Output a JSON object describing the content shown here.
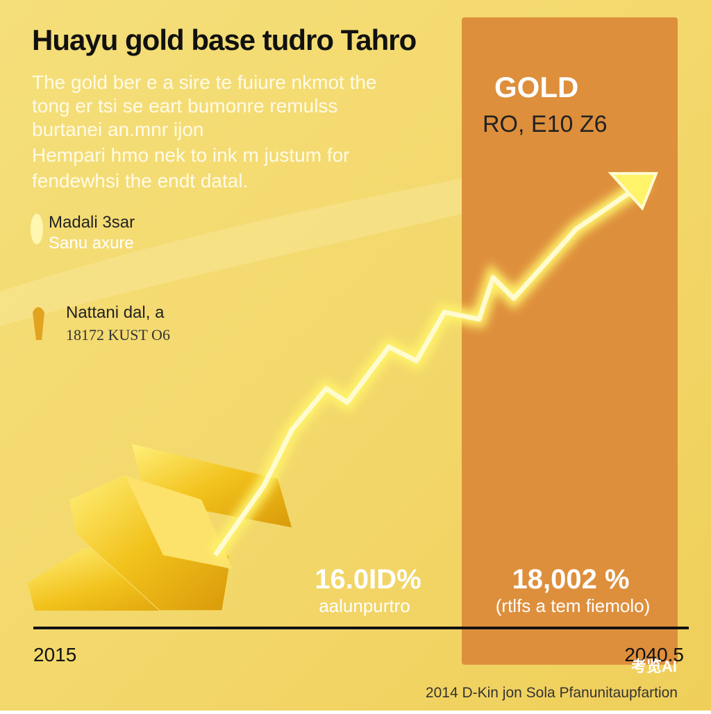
{
  "header": {
    "title": "Huayu gold base tudro Tahro"
  },
  "intro": {
    "lines": [
      "The gold ber e a sire te fuiure nkmot the",
      "tong er tsi se eart bumonre remulss",
      "burtanei an.mnr ijon",
      "Hempari hmo nek to ink m justum for",
      "fendewhsi the endt datal."
    ]
  },
  "legend": [
    {
      "label": "Madali 3sar",
      "sublabel": "Sanu axure"
    },
    {
      "label": "Nattani dal, a",
      "sublabel": "18172 KUST O6"
    }
  ],
  "panel": {
    "title": "GOLD",
    "subtitle": "RO, E10 Z6"
  },
  "stats": [
    {
      "value": "16.0ID%",
      "label": "aalunpurtro"
    },
    {
      "value": "18,002 %",
      "label": "(rtlfs a tem fiemolo)"
    }
  ],
  "axis": {
    "start": "2015",
    "end": "2040.5"
  },
  "footer": {
    "watermark": "考览AI",
    "credit": "2014 D-Kin jon Sola Pfanunitaupfartion"
  }
}
